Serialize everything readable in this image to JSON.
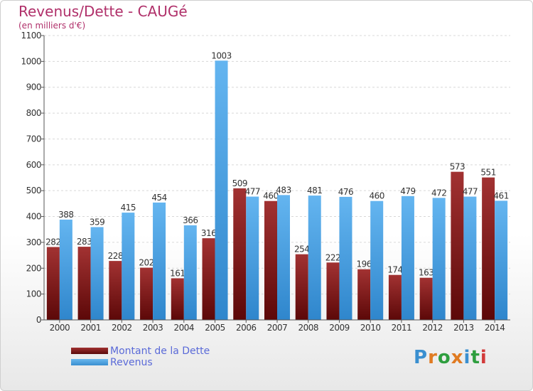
{
  "header": {
    "title": "Revenus/Dette - CAUGé",
    "subtitle": "(en milliers d'€)"
  },
  "legend": {
    "dette_label": "Montant de la Dette",
    "revenus_label": "Revenus"
  },
  "logo": {
    "letters": [
      "P",
      "r",
      "o",
      "x",
      "i",
      "t",
      "i"
    ],
    "colors": [
      "#3a8fd0",
      "#e07b22",
      "#2e9e3e",
      "#e07b22",
      "#3a8fd0",
      "#2e9e3e",
      "#d23a3a"
    ]
  },
  "colors": {
    "dette": "#7a1a1a",
    "revenus": "#4aa3e6",
    "title": "#b0306a",
    "legend_text": "#5a6ad8"
  },
  "chart_data": {
    "type": "bar",
    "categories": [
      "2000",
      "2001",
      "2002",
      "2003",
      "2004",
      "2005",
      "2006",
      "2007",
      "2008",
      "2009",
      "2010",
      "2011",
      "2012",
      "2013",
      "2014"
    ],
    "series": [
      {
        "name": "Montant de la Dette",
        "values": [
          282,
          283,
          228,
          202,
          161,
          316,
          509,
          460,
          254,
          222,
          196,
          174,
          163,
          573,
          551
        ]
      },
      {
        "name": "Revenus",
        "values": [
          388,
          359,
          415,
          454,
          366,
          1003,
          477,
          483,
          481,
          476,
          460,
          479,
          472,
          477,
          461
        ]
      }
    ],
    "data_labels": [
      [
        "282",
        "283",
        "228",
        "202",
        "161",
        "316",
        "509",
        "460",
        "254",
        "222",
        "196",
        "174",
        "163",
        "573",
        "551"
      ],
      [
        "388",
        "359",
        "415",
        "454",
        "366",
        "1003",
        "477",
        "483",
        "481",
        "476",
        "460",
        "479",
        "472",
        "477",
        "461"
      ]
    ],
    "yticks": [
      0,
      100,
      200,
      300,
      400,
      500,
      600,
      700,
      800,
      900,
      1000,
      1100
    ],
    "ylim": [
      0,
      1100
    ],
    "grid": true
  }
}
